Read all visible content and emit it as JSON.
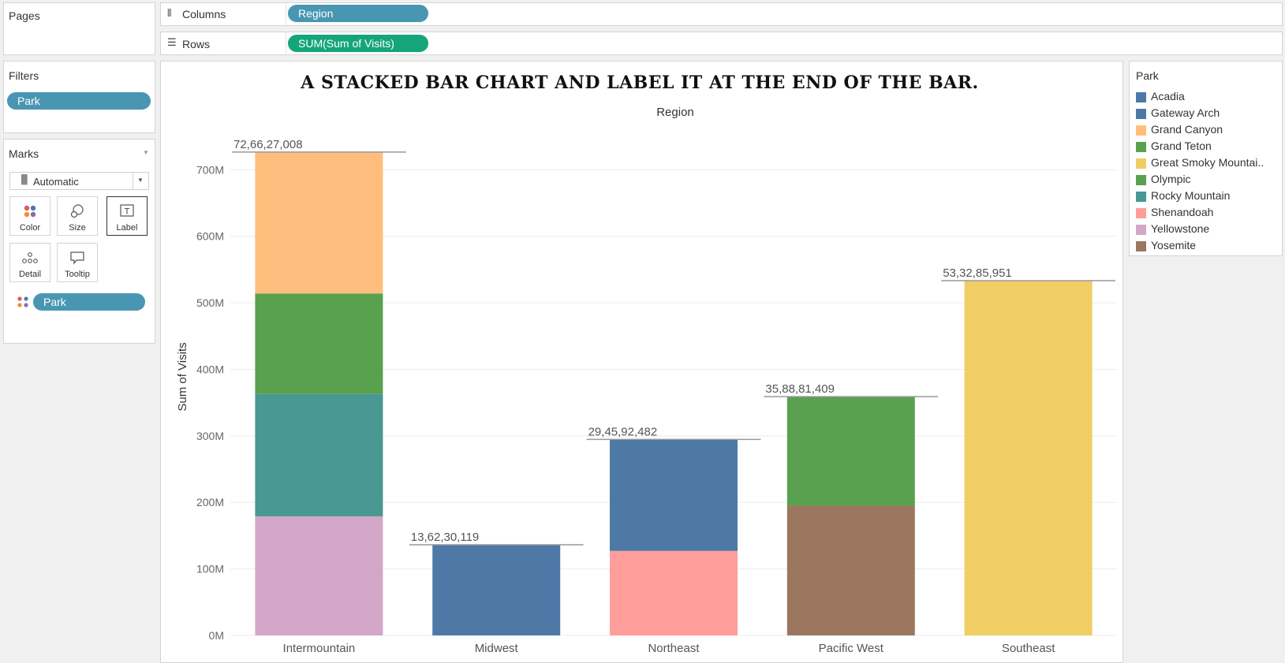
{
  "pages": {
    "title": "Pages"
  },
  "shelves": {
    "columns_label": "Columns",
    "columns_pill": "Region",
    "rows_label": "Rows",
    "rows_pill": "SUM(Sum of Visits)"
  },
  "filters": {
    "title": "Filters",
    "pill": "Park"
  },
  "marks": {
    "title": "Marks",
    "type": "Automatic",
    "buttons": [
      "Color",
      "Size",
      "Label",
      "Detail",
      "Tooltip"
    ],
    "color_pill": "Park"
  },
  "legend": {
    "title": "Park",
    "items": [
      {
        "name": "Acadia",
        "color": "#4e79a7"
      },
      {
        "name": "Gateway Arch",
        "color": "#4e79a7"
      },
      {
        "name": "Grand Canyon",
        "color": "#ffbe7d"
      },
      {
        "name": "Grand Teton",
        "color": "#59a14f"
      },
      {
        "name": "Great Smoky Mountai..",
        "color": "#f1ce63"
      },
      {
        "name": "Olympic",
        "color": "#59a14f"
      },
      {
        "name": "Rocky Mountain",
        "color": "#499894"
      },
      {
        "name": "Shenandoah",
        "color": "#ff9d9a"
      },
      {
        "name": "Yellowstone",
        "color": "#d4a6c8"
      },
      {
        "name": "Yosemite",
        "color": "#9d7660"
      }
    ]
  },
  "chart_data": {
    "type": "bar",
    "title": "A STACKED BAR CHART AND LABEL IT AT THE END OF THE BAR.",
    "column_header": "Region",
    "xlabel": "",
    "ylabel": "Sum of Visits",
    "ylim": [
      0,
      730000000
    ],
    "yticks": [
      0,
      100000000,
      200000000,
      300000000,
      400000000,
      500000000,
      600000000,
      700000000
    ],
    "ytick_labels": [
      "0M",
      "100M",
      "200M",
      "300M",
      "400M",
      "500M",
      "600M",
      "700M"
    ],
    "categories": [
      "Intermountain",
      "Midwest",
      "Northeast",
      "Pacific West",
      "Southeast"
    ],
    "totals": [
      726627008,
      136230119,
      294592482,
      358881409,
      533285951
    ],
    "total_labels": [
      "72,66,27,008",
      "13,62,30,119",
      "29,45,92,482",
      "35,88,81,409",
      "53,32,85,951"
    ],
    "series": [
      {
        "name": "Yellowstone",
        "color": "#d4a6c8",
        "values": [
          179000000,
          0,
          0,
          0,
          0
        ]
      },
      {
        "name": "Rocky Mountain",
        "color": "#499894",
        "values": [
          184000000,
          0,
          0,
          0,
          0
        ]
      },
      {
        "name": "Grand Teton",
        "color": "#59a14f",
        "values": [
          151000000,
          0,
          0,
          0,
          0
        ]
      },
      {
        "name": "Grand Canyon",
        "color": "#ffbe7d",
        "values": [
          212627008,
          0,
          0,
          0,
          0
        ]
      },
      {
        "name": "Gateway Arch",
        "color": "#4e79a7",
        "values": [
          0,
          136230119,
          0,
          0,
          0
        ]
      },
      {
        "name": "Shenandoah",
        "color": "#ff9d9a",
        "values": [
          0,
          0,
          127000000,
          0,
          0
        ]
      },
      {
        "name": "Acadia",
        "color": "#4e79a7",
        "values": [
          0,
          0,
          167592482,
          0,
          0
        ]
      },
      {
        "name": "Yosemite",
        "color": "#9d7660",
        "values": [
          0,
          0,
          0,
          195000000,
          0
        ]
      },
      {
        "name": "Olympic",
        "color": "#59a14f",
        "values": [
          0,
          0,
          0,
          163881409,
          0
        ]
      },
      {
        "name": "Great Smoky Mountains",
        "color": "#f1ce63",
        "values": [
          0,
          0,
          0,
          0,
          533285951
        ]
      }
    ],
    "grid": true,
    "legend_position": "right"
  }
}
